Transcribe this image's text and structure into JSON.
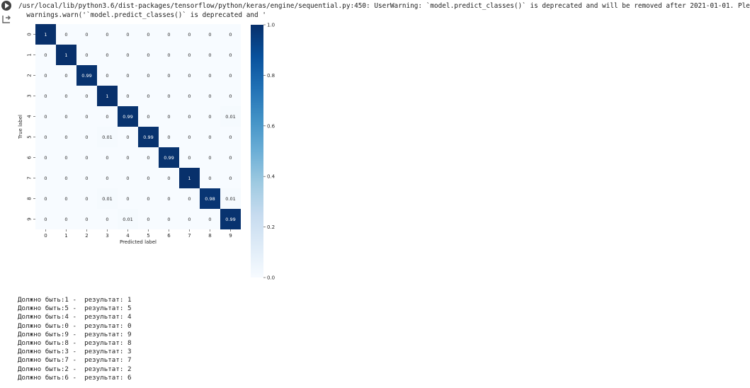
{
  "cell": {
    "warning_line1": "/usr/local/lib/python3.6/dist-packages/tensorflow/python/keras/engine/sequential.py:450: UserWarning: `model.predict_classes()` is deprecated and will be removed after 2021-01-01. Ple",
    "warning_line2": "  warnings.warn('`model.predict_classes()` is deprecated and '",
    "run_icon": "play-circle-icon",
    "output_icon": "output-arrow-icon"
  },
  "chart_data": {
    "type": "heatmap",
    "title": "",
    "xlabel": "Predicted label",
    "ylabel": "True label",
    "x_categories": [
      "0",
      "1",
      "2",
      "3",
      "4",
      "5",
      "6",
      "7",
      "8",
      "9"
    ],
    "y_categories": [
      "0",
      "1",
      "2",
      "3",
      "4",
      "5",
      "6",
      "7",
      "8",
      "9"
    ],
    "values": [
      [
        "1",
        "0",
        "0",
        "0",
        "0",
        "0",
        "0",
        "0",
        "0",
        "0"
      ],
      [
        "0",
        "1",
        "0",
        "0",
        "0",
        "0",
        "0",
        "0",
        "0",
        "0"
      ],
      [
        "0",
        "0",
        "0.99",
        "0",
        "0",
        "0",
        "0",
        "0",
        "0",
        "0"
      ],
      [
        "0",
        "0",
        "0",
        "1",
        "0",
        "0",
        "0",
        "0",
        "0",
        "0"
      ],
      [
        "0",
        "0",
        "0",
        "0",
        "0.99",
        "0",
        "0",
        "0",
        "0",
        "0.01"
      ],
      [
        "0",
        "0",
        "0",
        "0.01",
        "0",
        "0.99",
        "0",
        "0",
        "0",
        "0"
      ],
      [
        "0",
        "0",
        "0",
        "0",
        "0",
        "0",
        "0.99",
        "0",
        "0",
        "0"
      ],
      [
        "0",
        "0",
        "0",
        "0",
        "0",
        "0",
        "0",
        "1",
        "0",
        "0"
      ],
      [
        "0",
        "0",
        "0",
        "0.01",
        "0",
        "0",
        "0",
        "0",
        "0.98",
        "0.01"
      ],
      [
        "0",
        "0",
        "0",
        "0",
        "0.01",
        "0",
        "0",
        "0",
        "0",
        "0.99"
      ]
    ],
    "colorbar": {
      "range": [
        0,
        1
      ],
      "ticks": [
        "0.0",
        "0.2",
        "0.4",
        "0.6",
        "0.8",
        "1.0"
      ],
      "colormap": "Blues",
      "low_color": "#f7fbff",
      "high_color": "#08306b"
    }
  },
  "results": [
    {
      "label": "Должно быть:",
      "true_value": "1",
      "sep": " -  ",
      "result_label": "результат:",
      "predicted": "1"
    },
    {
      "label": "Должно быть:",
      "true_value": "5",
      "sep": " -  ",
      "result_label": "результат:",
      "predicted": "5"
    },
    {
      "label": "Должно быть:",
      "true_value": "4",
      "sep": " -  ",
      "result_label": "результат:",
      "predicted": "4"
    },
    {
      "label": "Должно быть:",
      "true_value": "0",
      "sep": " -  ",
      "result_label": "результат:",
      "predicted": "0"
    },
    {
      "label": "Должно быть:",
      "true_value": "9",
      "sep": " -  ",
      "result_label": "результат:",
      "predicted": "9"
    },
    {
      "label": "Должно быть:",
      "true_value": "8",
      "sep": " -  ",
      "result_label": "результат:",
      "predicted": "8"
    },
    {
      "label": "Должно быть:",
      "true_value": "3",
      "sep": " -  ",
      "result_label": "результат:",
      "predicted": "3"
    },
    {
      "label": "Должно быть:",
      "true_value": "7",
      "sep": " -  ",
      "result_label": "результат:",
      "predicted": "7"
    },
    {
      "label": "Должно быть:",
      "true_value": "2",
      "sep": " -  ",
      "result_label": "результат:",
      "predicted": "2"
    },
    {
      "label": "Должно быть:",
      "true_value": "6",
      "sep": " -  ",
      "result_label": "результат:",
      "predicted": "6"
    }
  ]
}
